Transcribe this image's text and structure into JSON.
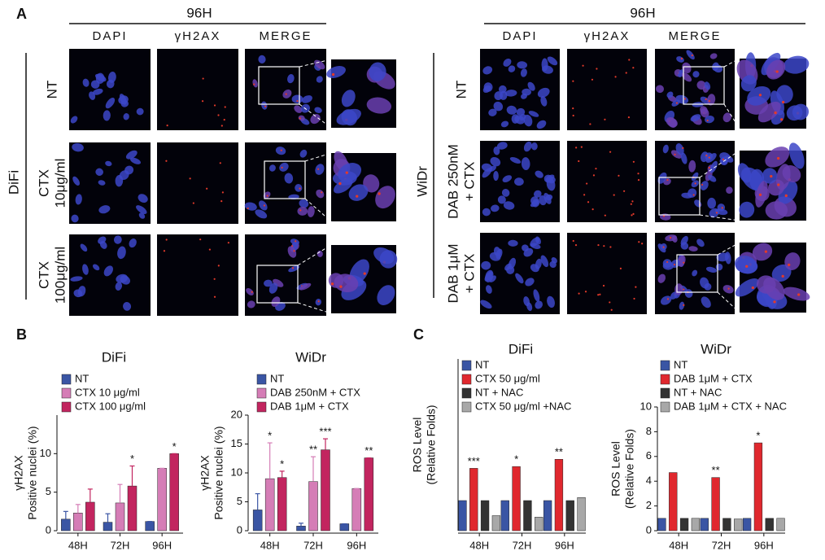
{
  "panel_labels": [
    "A",
    "B",
    "C"
  ],
  "panel_a": [
    {
      "group": "DiFi",
      "timepoint": "96H",
      "columns": [
        "DAPI",
        "γH2AX",
        "MERGE"
      ],
      "rows": [
        [
          "NT"
        ],
        [
          "CTX",
          "10μg/ml"
        ],
        [
          "CTX",
          "100μg/ml"
        ]
      ]
    },
    {
      "group": "WiDr",
      "timepoint": "96H",
      "columns": [
        "DAPI",
        "γH2AX",
        "MERGE"
      ],
      "rows": [
        [
          "NT"
        ],
        [
          "DAB 250nM",
          "+ CTX"
        ],
        [
          "DAB 1μM",
          "+ CTX"
        ]
      ]
    }
  ],
  "chart_data": [
    {
      "type": "bar",
      "title": "DiFi",
      "y_label": [
        "γH2AX",
        "Positive nuclei (%)"
      ],
      "categories": [
        "48H",
        "72H",
        "96H"
      ],
      "ylim": [
        0,
        15
      ],
      "yticks": [
        0,
        5,
        10
      ],
      "series": [
        {
          "name": "NT",
          "color": "#3a55a4",
          "values": [
            1.5,
            1.1,
            1.2
          ],
          "errors": [
            1.0,
            1.1,
            0
          ]
        },
        {
          "name": "CTX 10 μg/ml",
          "color": "#d57db6",
          "values": [
            2.3,
            3.6,
            8.1
          ],
          "errors": [
            1.1,
            2.4,
            0
          ]
        },
        {
          "name": "CTX 100 μg/ml",
          "color": "#c2255f",
          "values": [
            3.7,
            5.8,
            10
          ],
          "errors": [
            1.7,
            2.6,
            0
          ],
          "significance": [
            null,
            "*",
            "*"
          ]
        }
      ]
    },
    {
      "type": "bar",
      "title": "WiDr",
      "y_label": [
        "γH2AX",
        "Positive nuclei (%)"
      ],
      "categories": [
        "48H",
        "72H",
        "96H"
      ],
      "ylim": [
        0,
        20
      ],
      "yticks": [
        0,
        5,
        10,
        15,
        20
      ],
      "series": [
        {
          "name": "NT",
          "color": "#3a55a4",
          "values": [
            3.6,
            0.8,
            1.2
          ],
          "errors": [
            2.8,
            0.5,
            0
          ]
        },
        {
          "name": "DAB 250nM + CTX",
          "color": "#d57db6",
          "values": [
            9.0,
            8.5,
            7.3
          ],
          "errors": [
            6.2,
            4.3,
            0
          ],
          "significance": [
            "*",
            "**",
            null
          ]
        },
        {
          "name": "DAB 1μM + CTX",
          "color": "#c2255f",
          "values": [
            9.2,
            14.0,
            12.6
          ],
          "errors": [
            1.1,
            1.9,
            0
          ],
          "significance": [
            "*",
            "***",
            "**"
          ]
        }
      ]
    },
    {
      "type": "bar",
      "title": "DiFi",
      "y_label": [
        "ROS Level",
        "(Relative Folds)"
      ],
      "categories": [
        "48H",
        "72H",
        "96H"
      ],
      "ylim": [
        0,
        5.7
      ],
      "series": [
        {
          "name": "NT",
          "color": "#3a55a4",
          "values": [
            1,
            1,
            1
          ]
        },
        {
          "name": "CTX 50 μg/ml",
          "color": "#e0282e",
          "values": [
            2.07,
            2.13,
            2.37
          ],
          "significance": [
            "***",
            "*",
            "**"
          ]
        },
        {
          "name": "NT + NAC",
          "color": "#333333",
          "values": [
            1,
            1,
            1
          ]
        },
        {
          "name": "CTX 50 μg/ml  +NAC",
          "color": "#a8a8a8",
          "values": [
            0.5,
            0.45,
            1.1
          ]
        }
      ]
    },
    {
      "type": "bar",
      "title": "WiDr",
      "y_label": [
        "ROS Level",
        "(Relative Folds)"
      ],
      "categories": [
        "48H",
        "72H",
        "96H"
      ],
      "ylim": [
        0,
        10
      ],
      "yticks": [
        0,
        2,
        4,
        6,
        8,
        10
      ],
      "series": [
        {
          "name": "NT",
          "color": "#3a55a4",
          "values": [
            1,
            1,
            1
          ]
        },
        {
          "name": "DAB 1μM + CTX",
          "color": "#e0282e",
          "values": [
            4.7,
            4.3,
            7.1
          ],
          "significance": [
            null,
            "**",
            "*"
          ]
        },
        {
          "name": "NT + NAC",
          "color": "#333333",
          "values": [
            1,
            1,
            1
          ]
        },
        {
          "name": "DAB 1μM + CTX + NAC",
          "color": "#a8a8a8",
          "values": [
            1,
            0.95,
            1
          ]
        }
      ]
    }
  ]
}
